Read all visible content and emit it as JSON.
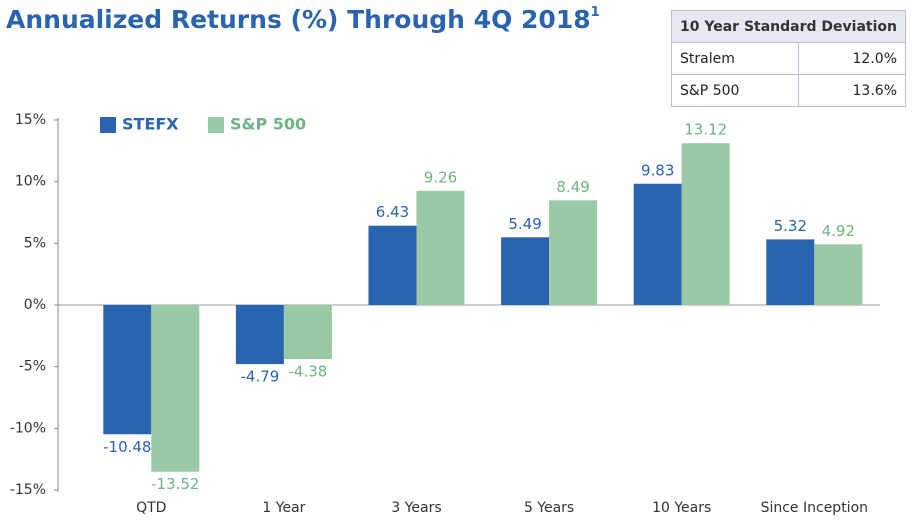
{
  "chart_data": {
    "type": "bar",
    "title": "Annualized Returns (%) Through 4Q 2018",
    "title_superscript": "1",
    "categories": [
      "QTD",
      "1 Year",
      "3 Years",
      "5 Years",
      "10 Years",
      "Since Inception"
    ],
    "series": [
      {
        "name": "STEFX",
        "color": "#2a63b0",
        "values": [
          -10.48,
          -4.79,
          6.43,
          5.49,
          9.83,
          5.32
        ]
      },
      {
        "name": "S&P 500",
        "color": "#9acaa5",
        "values": [
          -13.52,
          -4.38,
          9.26,
          8.49,
          13.12,
          4.92
        ]
      }
    ],
    "ylim": [
      -15,
      15
    ],
    "yticks": [
      {
        "value": -15,
        "label": "-15%"
      },
      {
        "value": -10,
        "label": "-10%"
      },
      {
        "value": -5,
        "label": "-5%"
      },
      {
        "value": 0,
        "label": "0%"
      },
      {
        "value": 5,
        "label": "5%"
      },
      {
        "value": 10,
        "label": "10%"
      },
      {
        "value": 15,
        "label": "15%"
      }
    ],
    "legend": "top-left",
    "grid": false
  },
  "table": {
    "header": "10 Year Standard Deviation",
    "rows": [
      [
        "Stralem",
        "12.0%"
      ],
      [
        "S&P 500",
        "13.6%"
      ]
    ]
  }
}
